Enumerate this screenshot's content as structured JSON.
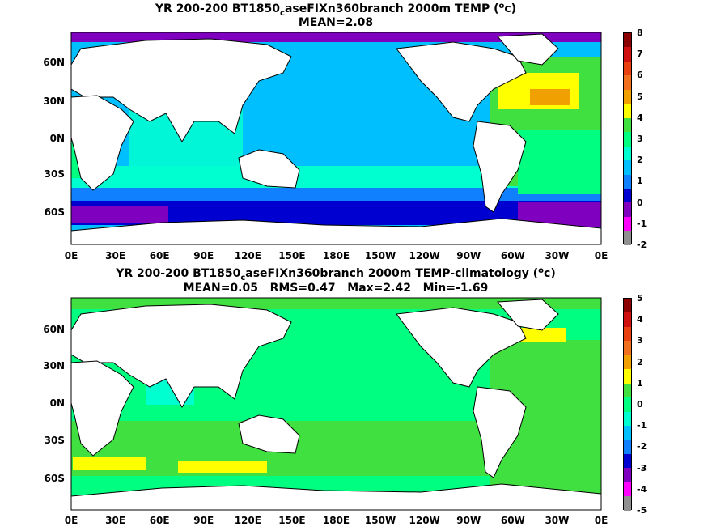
{
  "top_panel": {
    "title_pre": "YR 200-200 BT1850",
    "title_sub": "c",
    "title_mid": "aseFIXn360branch 2000m TEMP (",
    "title_sup": "o",
    "title_post": "c)",
    "stats": "MEAN=2.08",
    "colorbar_labels": [
      "8",
      "7",
      "6",
      "5",
      "4",
      "3",
      "2",
      "1",
      "0",
      "-1",
      "-2"
    ]
  },
  "bottom_panel": {
    "title_pre": "YR 200-200 BT1850",
    "title_sub": "c",
    "title_mid": "aseFIXn360branch 2000m TEMP-climatology (",
    "title_sup": "o",
    "title_post": "c)",
    "stats": "MEAN=0.05   RMS=0.47   Max=2.42   Min=-1.69",
    "colorbar_labels": [
      "5",
      "4",
      "3",
      "2",
      "1",
      "0",
      "-1",
      "-2",
      "-3",
      "-4",
      "-5"
    ]
  },
  "lat_labels": [
    "60N",
    "30N",
    "0N",
    "30S",
    "60S"
  ],
  "lon_labels": [
    "0E",
    "30E",
    "60E",
    "90E",
    "120E",
    "150E",
    "180E",
    "150W",
    "120W",
    "90W",
    "60W",
    "30W",
    "0E"
  ],
  "colors": {
    "top_scale": [
      "#8b0000",
      "#d01010",
      "#e84010",
      "#f07020",
      "#f0a000",
      "#ffff00",
      "#40e040",
      "#00ff80",
      "#00ffd0",
      "#00c0ff",
      "#1080ff",
      "#0000d0",
      "#8000c0",
      "#ff00ff",
      "#909090"
    ],
    "bottom_scale": [
      "#8b0000",
      "#d01010",
      "#e84010",
      "#f07020",
      "#f0a000",
      "#ffff00",
      "#40e040",
      "#00ff80",
      "#00ffd0",
      "#00c0ff",
      "#1080ff",
      "#0000d0",
      "#8000c0",
      "#ff00ff",
      "#909090"
    ]
  }
}
